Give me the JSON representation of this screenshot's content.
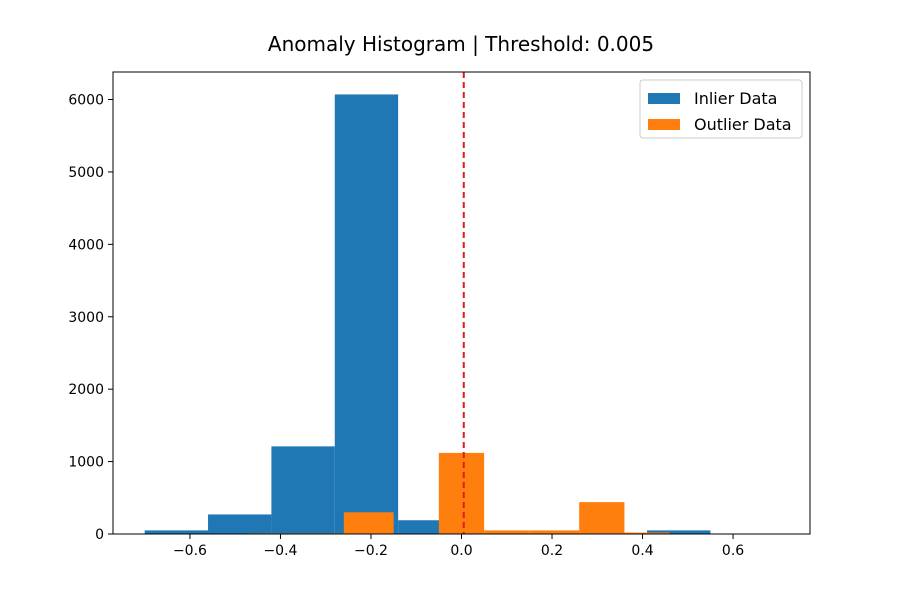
{
  "chart_data": {
    "type": "bar",
    "title": "Anomaly Histogram | Threshold: 0.005",
    "xlabel": "",
    "ylabel": "",
    "xlim": [
      -0.77,
      0.77
    ],
    "ylim": [
      0,
      6380
    ],
    "x_ticks": [
      -0.6,
      -0.4,
      -0.2,
      0.0,
      0.2,
      0.4,
      0.6
    ],
    "x_tick_labels": [
      "−0.6",
      "−0.4",
      "−0.2",
      "0.0",
      "0.2",
      "0.4",
      "0.6"
    ],
    "y_ticks": [
      0,
      1000,
      2000,
      3000,
      4000,
      5000,
      6000
    ],
    "y_tick_labels": [
      "0",
      "1000",
      "2000",
      "3000",
      "4000",
      "5000",
      "6000"
    ],
    "grid": false,
    "legend_position": "top-right",
    "threshold": {
      "value": 0.005,
      "style": "dashed",
      "color": "#e41a1c"
    },
    "series": [
      {
        "name": "Inlier Data",
        "color": "#1f77b4",
        "bins": [
          {
            "x0": -0.7,
            "x1": -0.56,
            "count": 50
          },
          {
            "x0": -0.56,
            "x1": -0.42,
            "count": 270
          },
          {
            "x0": -0.42,
            "x1": -0.28,
            "count": 1210
          },
          {
            "x0": -0.28,
            "x1": -0.14,
            "count": 6070
          },
          {
            "x0": -0.14,
            "x1": -0.01,
            "count": 190
          },
          {
            "x0": -0.01,
            "x1": 0.13,
            "count": 0
          },
          {
            "x0": 0.13,
            "x1": 0.27,
            "count": 0
          },
          {
            "x0": 0.27,
            "x1": 0.41,
            "count": 0
          },
          {
            "x0": 0.41,
            "x1": 0.55,
            "count": 50
          }
        ]
      },
      {
        "name": "Outlier Data",
        "color": "#ff7f0e",
        "bins": [
          {
            "x0": -0.47,
            "x1": -0.36,
            "count": 10
          },
          {
            "x0": -0.36,
            "x1": -0.26,
            "count": 10
          },
          {
            "x0": -0.26,
            "x1": -0.15,
            "count": 300
          },
          {
            "x0": -0.15,
            "x1": -0.05,
            "count": 0
          },
          {
            "x0": -0.05,
            "x1": 0.05,
            "count": 1120
          },
          {
            "x0": 0.05,
            "x1": 0.15,
            "count": 50
          },
          {
            "x0": 0.15,
            "x1": 0.26,
            "count": 50
          },
          {
            "x0": 0.26,
            "x1": 0.36,
            "count": 440
          },
          {
            "x0": 0.36,
            "x1": 0.46,
            "count": 20
          },
          {
            "x0": 0.46,
            "x1": 0.57,
            "count": 0
          },
          {
            "x0": 0.57,
            "x1": 0.67,
            "count": 0
          }
        ]
      }
    ]
  }
}
